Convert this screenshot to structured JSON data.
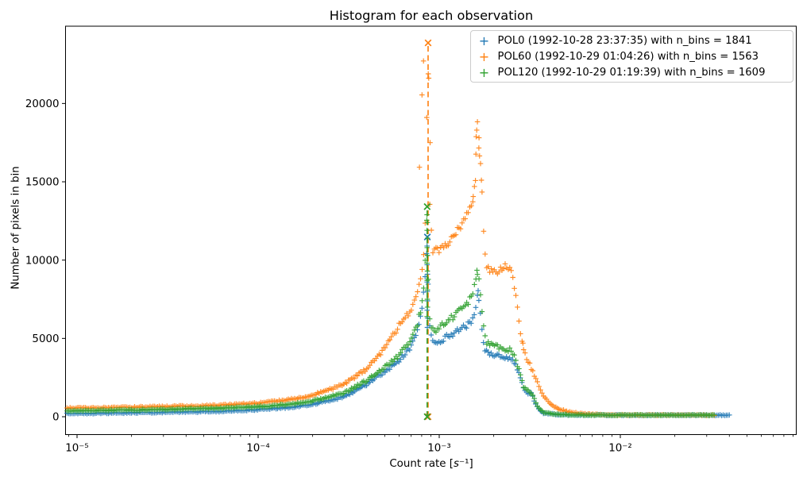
{
  "title": "Histogram for each observation",
  "axes": {
    "xlabel_prefix": "Count rate [",
    "xlabel_unit": "s",
    "xlabel_suffix": "⁻¹]",
    "ylabel": "Number of pixels in bin"
  },
  "legend": {
    "marker_glyph": "+",
    "items": [
      {
        "label": "POL0 (1992-10-28 23:37:35) with n_bins = 1841",
        "color": "#1f77b4"
      },
      {
        "label": "POL60 (1992-10-29 01:04:26) with n_bins = 1563",
        "color": "#ff7f0e"
      },
      {
        "label": "POL120 (1992-10-29 01:19:39) with n_bins = 1609",
        "color": "#2ca02c"
      }
    ]
  },
  "chart_data": {
    "type": "scatter",
    "title": "Histogram for each observation",
    "xlabel": "Count rate [s⁻¹]",
    "ylabel": "Number of pixels in bin",
    "x_scale": "log",
    "y_scale": "linear",
    "xlim": [
      8.64e-06,
      0.0937
    ],
    "ylim": [
      -1150,
      24930
    ],
    "grid": false,
    "legend_position": "upper right",
    "marker": "+",
    "x_major_ticks": [
      {
        "value": 1e-05,
        "label": "10⁻⁵"
      },
      {
        "value": 0.0001,
        "label": "10⁻⁴"
      },
      {
        "value": 0.001,
        "label": "10⁻³"
      },
      {
        "value": 0.01,
        "label": "10⁻²"
      }
    ],
    "y_ticks": [
      {
        "value": 0,
        "label": "0"
      },
      {
        "value": 5000,
        "label": "5000"
      },
      {
        "value": 10000,
        "label": "10000"
      },
      {
        "value": 15000,
        "label": "15000"
      },
      {
        "value": 20000,
        "label": "20000"
      }
    ],
    "series": [
      {
        "name": "POL0",
        "datetime": "1992-10-28 23:37:35",
        "n_bins": 1841,
        "color": "#1f77b4",
        "x_end": 0.04,
        "peak_line": {
          "x": 0.00086,
          "y": 11475
        },
        "anchors": [
          [
            8.8e-06,
            200
          ],
          [
            1.5e-05,
            230
          ],
          [
            3e-05,
            280
          ],
          [
            6e-05,
            340
          ],
          [
            0.0001,
            450
          ],
          [
            0.00015,
            600
          ],
          [
            0.0002,
            790
          ],
          [
            0.0003,
            1280
          ],
          [
            0.0004,
            2080
          ],
          [
            0.0005,
            2900
          ],
          [
            0.0006,
            3600
          ],
          [
            0.0007,
            4500
          ],
          [
            0.00076,
            5500
          ],
          [
            0.0008,
            6700
          ],
          [
            0.00083,
            8300
          ],
          [
            0.00086,
            11475
          ],
          [
            0.000875,
            6200
          ],
          [
            0.0009,
            5100
          ],
          [
            0.00097,
            4650
          ],
          [
            0.0011,
            5100
          ],
          [
            0.00125,
            5450
          ],
          [
            0.0014,
            5750
          ],
          [
            0.00152,
            6050
          ],
          [
            0.00158,
            6600
          ],
          [
            0.00163,
            7900
          ],
          [
            0.00166,
            7300
          ],
          [
            0.00171,
            5900
          ],
          [
            0.00176,
            4500
          ],
          [
            0.00182,
            4150
          ],
          [
            0.002,
            4000
          ],
          [
            0.0023,
            3800
          ],
          [
            0.0025,
            3650
          ],
          [
            0.00262,
            3350
          ],
          [
            0.00272,
            2950
          ],
          [
            0.00282,
            2400
          ],
          [
            0.00292,
            1750
          ],
          [
            0.00305,
            1550
          ],
          [
            0.00325,
            1450
          ],
          [
            0.0034,
            800
          ],
          [
            0.00355,
            450
          ],
          [
            0.00375,
            230
          ],
          [
            0.0041,
            180
          ],
          [
            0.0046,
            140
          ],
          [
            0.0052,
            120
          ],
          [
            0.0065,
            108
          ],
          [
            0.01,
            105
          ],
          [
            0.04,
            105
          ]
        ],
        "outliers": [
          [
            0.000857,
            10900
          ],
          [
            0.000861,
            10300
          ],
          [
            0.000858,
            9700
          ],
          [
            0.000862,
            9100
          ],
          [
            0.000857,
            8600
          ],
          [
            0.00086,
            8000
          ],
          [
            0.000862,
            7400
          ],
          [
            0.000858,
            6800
          ],
          [
            0.000861,
            6300
          ],
          [
            0.000859,
            5700
          ],
          [
            0.00164,
            8050
          ]
        ]
      },
      {
        "name": "POL60",
        "datetime": "1992-10-29 01:04:26",
        "n_bins": 1563,
        "color": "#ff7f0e",
        "x_end": 0.033,
        "peak_line": {
          "x": 0.000868,
          "y": 23870
        },
        "anchors": [
          [
            8.8e-06,
            550
          ],
          [
            1.5e-05,
            580
          ],
          [
            3e-05,
            640
          ],
          [
            6e-05,
            720
          ],
          [
            0.0001,
            860
          ],
          [
            0.00015,
            1090
          ],
          [
            0.0002,
            1360
          ],
          [
            0.0003,
            2100
          ],
          [
            0.0004,
            3050
          ],
          [
            0.0005,
            4350
          ],
          [
            0.0006,
            5800
          ],
          [
            0.00066,
            6500
          ],
          [
            0.00072,
            7100
          ],
          [
            0.00077,
            8200
          ],
          [
            0.00081,
            9600
          ],
          [
            0.000835,
            12000
          ],
          [
            0.000866,
            23870
          ],
          [
            0.000885,
            13500
          ],
          [
            0.00092,
            10500
          ],
          [
            0.001,
            10700
          ],
          [
            0.00115,
            11300
          ],
          [
            0.0013,
            12100
          ],
          [
            0.00142,
            12800
          ],
          [
            0.0015,
            13400
          ],
          [
            0.00156,
            14300
          ],
          [
            0.00163,
            19150
          ],
          [
            0.00168,
            16800
          ],
          [
            0.00173,
            14200
          ],
          [
            0.00178,
            10300
          ],
          [
            0.00185,
            9500
          ],
          [
            0.00205,
            9200
          ],
          [
            0.0022,
            9350
          ],
          [
            0.00235,
            9800
          ],
          [
            0.00248,
            9200
          ],
          [
            0.00258,
            8700
          ],
          [
            0.00266,
            7500
          ],
          [
            0.00274,
            6400
          ],
          [
            0.00282,
            5300
          ],
          [
            0.00295,
            4200
          ],
          [
            0.0031,
            3500
          ],
          [
            0.0033,
            2900
          ],
          [
            0.00355,
            1900
          ],
          [
            0.0038,
            1300
          ],
          [
            0.0041,
            800
          ],
          [
            0.0046,
            480
          ],
          [
            0.0052,
            300
          ],
          [
            0.006,
            200
          ],
          [
            0.007,
            150
          ],
          [
            0.0085,
            120
          ],
          [
            0.012,
            105
          ],
          [
            0.033,
            105
          ]
        ],
        "outliers": [
          [
            0.000778,
            15930
          ],
          [
            0.000803,
            20545
          ],
          [
            0.000819,
            22715
          ],
          [
            0.000875,
            21615
          ],
          [
            0.00089,
            17500
          ],
          [
            0.00154,
            14060
          ],
          [
            0.001585,
            15080
          ],
          [
            0.0016,
            17880
          ],
          [
            0.00161,
            18300
          ],
          [
            0.001655,
            17160
          ],
          [
            0.00167,
            16655
          ],
          [
            0.00171,
            15100
          ],
          [
            0.0029,
            4700
          ]
        ]
      },
      {
        "name": "POL120",
        "datetime": "1992-10-29 01:19:39",
        "n_bins": 1609,
        "color": "#2ca02c",
        "x_end": 0.033,
        "peak_line": {
          "x": 0.000858,
          "y": 13415
        },
        "anchors": [
          [
            8.8e-06,
            380
          ],
          [
            1.5e-05,
            410
          ],
          [
            3e-05,
            460
          ],
          [
            6e-05,
            540
          ],
          [
            0.0001,
            640
          ],
          [
            0.00015,
            800
          ],
          [
            0.0002,
            1000
          ],
          [
            0.0003,
            1540
          ],
          [
            0.0004,
            2330
          ],
          [
            0.0005,
            3150
          ],
          [
            0.0006,
            3900
          ],
          [
            0.0007,
            4900
          ],
          [
            0.00076,
            5900
          ],
          [
            0.0008,
            7200
          ],
          [
            0.00083,
            9000
          ],
          [
            0.000858,
            13415
          ],
          [
            0.000875,
            7000
          ],
          [
            0.0009,
            5700
          ],
          [
            0.00097,
            5450
          ],
          [
            0.0011,
            6100
          ],
          [
            0.00125,
            6600
          ],
          [
            0.0014,
            7100
          ],
          [
            0.00152,
            7700
          ],
          [
            0.00158,
            8500
          ],
          [
            0.00162,
            9300
          ],
          [
            0.00167,
            8700
          ],
          [
            0.00172,
            7100
          ],
          [
            0.00177,
            5300
          ],
          [
            0.00183,
            4700
          ],
          [
            0.002,
            4550
          ],
          [
            0.0023,
            4350
          ],
          [
            0.0025,
            4200
          ],
          [
            0.00262,
            3800
          ],
          [
            0.00272,
            3200
          ],
          [
            0.00282,
            2550
          ],
          [
            0.00292,
            1950
          ],
          [
            0.00305,
            1700
          ],
          [
            0.00325,
            1500
          ],
          [
            0.0034,
            950
          ],
          [
            0.00355,
            550
          ],
          [
            0.00375,
            300
          ],
          [
            0.0041,
            190
          ],
          [
            0.0046,
            150
          ],
          [
            0.0052,
            125
          ],
          [
            0.0065,
            110
          ],
          [
            0.01,
            105
          ],
          [
            0.033,
            105
          ]
        ],
        "outliers": [
          [
            0.000856,
            12900
          ],
          [
            0.00086,
            12400
          ],
          [
            0.000857,
            11900
          ],
          [
            0.000861,
            11400
          ],
          [
            0.000858,
            10800
          ],
          [
            0.000862,
            10300
          ],
          [
            0.000856,
            9800
          ],
          [
            0.00086,
            9300
          ],
          [
            0.000858,
            8700
          ],
          [
            0.000861,
            8100
          ],
          [
            0.000859,
            7500
          ],
          [
            0.000862,
            7000
          ],
          [
            0.000857,
            6400
          ],
          [
            0.001615,
            9350
          ]
        ]
      }
    ]
  }
}
